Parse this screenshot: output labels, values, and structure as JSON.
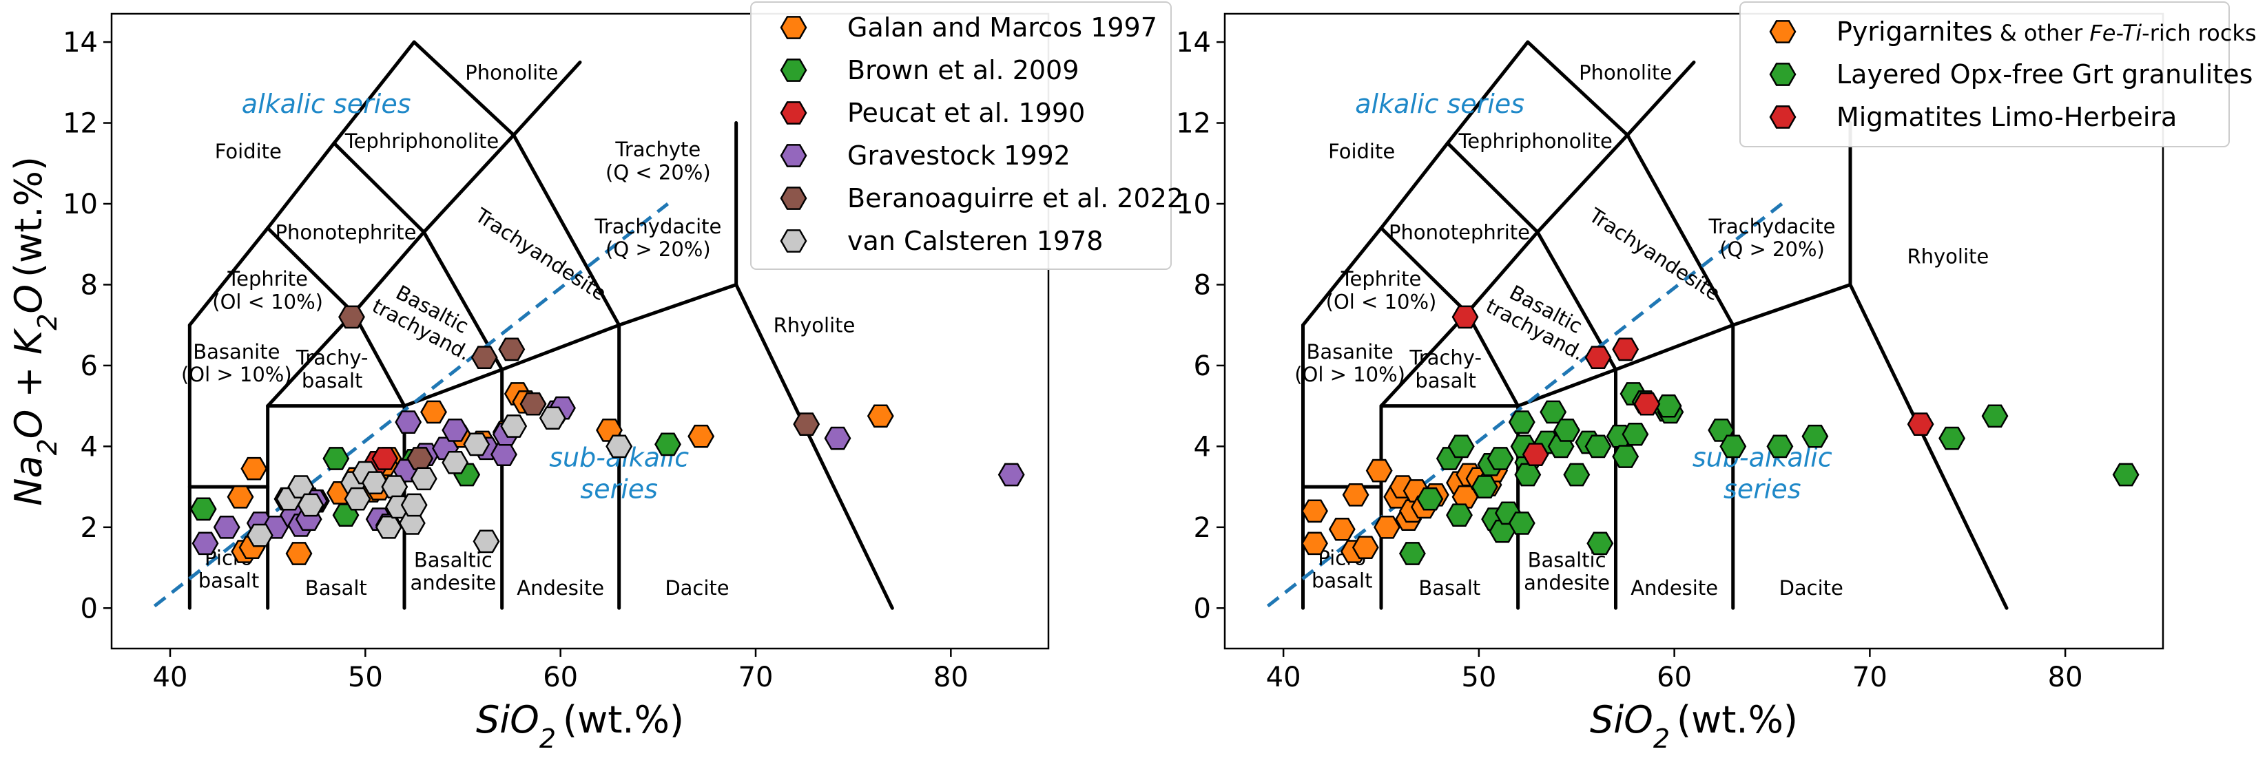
{
  "colors": {
    "orange": "#ff7f0e",
    "green": "#2ca02c",
    "red": "#d62728",
    "purple": "#9467bd",
    "brown": "#8c564b",
    "gray": "#c8c8c8",
    "dashed": "#1f77b4",
    "series_text": "#1e88c8"
  },
  "chart_data": [
    {
      "type": "scatter",
      "title": "",
      "xlabel": "SiO2 (wt.%)",
      "ylabel": "Na2O + K2O (wt.%)",
      "xlim": [
        37,
        85
      ],
      "ylim": [
        -1,
        14.7
      ],
      "xticks": [
        "40",
        "50",
        "60",
        "70",
        "80"
      ],
      "yticks": [
        "0",
        "2",
        "4",
        "6",
        "8",
        "10",
        "12",
        "14"
      ],
      "grid": false,
      "legend_placement": "top-center",
      "fields": [
        "Foidite",
        "Phonolite",
        "Tephriphonolite",
        "Phonotephrite",
        "Tephrite (Ol < 10%)",
        "Basanite (Ol > 10%)",
        "Trachy-basalt",
        "Basaltic trachyand.",
        "Trachyandesite",
        "Trachyte (Q < 20%)",
        "Trachydacite (Q > 20%)",
        "Rhyolite",
        "Picro basalt",
        "Basalt",
        "Basaltic andesite",
        "Andesite",
        "Dacite"
      ],
      "series_labels": [
        "alkalic series",
        "sub-alkalic series"
      ],
      "series": [
        {
          "name": "Galan and Marcos 1997",
          "color": "orange",
          "marker": "hexagon",
          "points": [
            [
              44.3,
              3.45
            ],
            [
              43.6,
              2.75
            ],
            [
              43.8,
              1.4
            ],
            [
              44.2,
              1.5
            ],
            [
              46.6,
              1.35
            ],
            [
              46.0,
              2.7
            ],
            [
              46.6,
              2.9
            ],
            [
              47.1,
              2.7
            ],
            [
              48.7,
              2.85
            ],
            [
              49.5,
              3.2
            ],
            [
              50.3,
              2.9
            ],
            [
              50.8,
              3.2
            ],
            [
              50.7,
              2.95
            ],
            [
              51.2,
              3.7
            ],
            [
              51.0,
              3.55
            ],
            [
              53.5,
              4.85
            ],
            [
              54.8,
              4.25
            ],
            [
              56.0,
              4.1
            ],
            [
              57.2,
              4.35
            ],
            [
              57.8,
              5.3
            ],
            [
              58.2,
              5.1
            ],
            [
              62.5,
              4.4
            ],
            [
              67.2,
              4.25
            ],
            [
              76.4,
              4.75
            ]
          ]
        },
        {
          "name": "Brown et al. 2009",
          "color": "green",
          "marker": "hexagon",
          "points": [
            [
              41.7,
              2.45
            ],
            [
              48.5,
              3.7
            ],
            [
              49.0,
              2.3
            ],
            [
              52.5,
              3.65
            ],
            [
              55.2,
              3.3
            ],
            [
              65.5,
              4.05
            ]
          ]
        },
        {
          "name": "Peucat et al. 1990",
          "color": "red",
          "marker": "hexagon",
          "points": [
            [
              46.4,
              2.7
            ],
            [
              47.5,
              2.65
            ],
            [
              50.6,
              3.6
            ],
            [
              51.0,
              3.7
            ]
          ]
        },
        {
          "name": "Gravestock 1992",
          "color": "purple",
          "marker": "hexagon",
          "points": [
            [
              41.8,
              1.6
            ],
            [
              42.9,
              2.0
            ],
            [
              44.6,
              2.1
            ],
            [
              45.4,
              2.0
            ],
            [
              46.3,
              2.3
            ],
            [
              46.7,
              2.05
            ],
            [
              47.1,
              2.2
            ],
            [
              47.4,
              2.65
            ],
            [
              50.7,
              2.2
            ],
            [
              51.2,
              2.05
            ],
            [
              52.1,
              3.4
            ],
            [
              52.2,
              4.6
            ],
            [
              53.1,
              3.8
            ],
            [
              54.1,
              3.95
            ],
            [
              54.6,
              4.4
            ],
            [
              56.2,
              3.95
            ],
            [
              57.1,
              3.8
            ],
            [
              57.2,
              4.3
            ],
            [
              59.8,
              4.85
            ],
            [
              60.1,
              4.95
            ],
            [
              74.2,
              4.2
            ],
            [
              83.1,
              3.3
            ]
          ]
        },
        {
          "name": "Beranoaguirre et al. 2022",
          "color": "brown",
          "marker": "hexagon",
          "points": [
            [
              49.3,
              7.2
            ],
            [
              56.1,
              6.2
            ],
            [
              57.5,
              6.4
            ],
            [
              52.8,
              3.7
            ],
            [
              58.6,
              5.05
            ],
            [
              72.6,
              4.55
            ]
          ]
        },
        {
          "name": "van Calsteren 1978",
          "color": "gray",
          "marker": "hexagon",
          "points": [
            [
              44.6,
              1.8
            ],
            [
              46.1,
              2.7
            ],
            [
              46.7,
              3.0
            ],
            [
              47.2,
              2.55
            ],
            [
              49.4,
              3.1
            ],
            [
              49.6,
              2.7
            ],
            [
              50.0,
              3.35
            ],
            [
              50.5,
              3.1
            ],
            [
              51.2,
              2.0
            ],
            [
              51.5,
              3.0
            ],
            [
              51.7,
              2.5
            ],
            [
              52.4,
              2.1
            ],
            [
              52.5,
              2.55
            ],
            [
              53.0,
              3.2
            ],
            [
              54.6,
              3.6
            ],
            [
              55.7,
              4.05
            ],
            [
              56.2,
              1.65
            ],
            [
              57.6,
              4.5
            ],
            [
              59.6,
              4.7
            ],
            [
              63.0,
              4.0
            ]
          ]
        }
      ]
    },
    {
      "type": "scatter",
      "title": "",
      "xlabel": "SiO2 (wt.%)",
      "ylabel": "",
      "xlim": [
        37,
        85
      ],
      "ylim": [
        -1,
        14.7
      ],
      "xticks": [
        "40",
        "50",
        "60",
        "70",
        "80"
      ],
      "yticks": [
        "0",
        "2",
        "4",
        "6",
        "8",
        "10",
        "12",
        "14"
      ],
      "grid": false,
      "legend_placement": "top-right",
      "fields": [
        "Foidite",
        "Phonolite",
        "Tephriphonolite",
        "Phonotephrite",
        "Tephrite (Ol < 10%)",
        "Basanite (Ol > 10%)",
        "Trachy-basalt",
        "Basaltic trachyand.",
        "Trachyandesite",
        "Trachydacite (Q > 20%)",
        "Rhyolite",
        "Picro basalt",
        "Basalt",
        "Basaltic andesite",
        "Andesite",
        "Dacite"
      ],
      "series_labels": [
        "alkalic series",
        "sub-alkalic series"
      ],
      "legend_entries": [
        {
          "name": "Pyrigarnites",
          "suffix_prefix": " & other ",
          "suffix_italic": "Fe-Ti",
          "suffix_end": "-rich rocks",
          "color": "orange"
        },
        {
          "name": "Layered Opx-free Grt granulites",
          "color": "green"
        },
        {
          "name": "Migmatites Limo-Herbeira",
          "color": "red"
        }
      ],
      "series": [
        {
          "name": "Pyrigarnites",
          "color": "orange",
          "marker": "hexagon",
          "points": [
            [
              41.6,
              2.4
            ],
            [
              41.6,
              1.6
            ],
            [
              43.0,
              1.95
            ],
            [
              43.6,
              1.4
            ],
            [
              43.7,
              2.8
            ],
            [
              44.2,
              1.5
            ],
            [
              44.9,
              3.4
            ],
            [
              45.3,
              2.0
            ],
            [
              45.8,
              2.75
            ],
            [
              46.1,
              3.0
            ],
            [
              46.4,
              2.2
            ],
            [
              46.6,
              2.4
            ],
            [
              46.8,
              2.9
            ],
            [
              47.2,
              2.5
            ],
            [
              47.8,
              2.8
            ],
            [
              49.0,
              3.1
            ],
            [
              49.3,
              2.75
            ],
            [
              49.5,
              3.3
            ],
            [
              50.0,
              3.2
            ],
            [
              50.5,
              3.05
            ],
            [
              50.8,
              3.4
            ]
          ]
        },
        {
          "name": "Layered Opx-free Grt granulites",
          "color": "green",
          "marker": "hexagon",
          "points": [
            [
              46.6,
              1.35
            ],
            [
              47.5,
              2.7
            ],
            [
              48.5,
              3.7
            ],
            [
              49.0,
              2.3
            ],
            [
              49.1,
              4.0
            ],
            [
              50.3,
              3.0
            ],
            [
              50.6,
              3.55
            ],
            [
              50.8,
              2.2
            ],
            [
              51.1,
              3.7
            ],
            [
              51.2,
              1.9
            ],
            [
              51.5,
              2.35
            ],
            [
              52.2,
              4.6
            ],
            [
              52.5,
              3.6
            ],
            [
              52.5,
              3.3
            ],
            [
              52.3,
              4.0
            ],
            [
              52.2,
              2.1
            ],
            [
              53.5,
              4.1
            ],
            [
              53.8,
              4.85
            ],
            [
              54.2,
              4.0
            ],
            [
              54.5,
              4.4
            ],
            [
              55.0,
              3.3
            ],
            [
              55.6,
              4.1
            ],
            [
              56.1,
              4.0
            ],
            [
              56.2,
              1.6
            ],
            [
              57.2,
              4.25
            ],
            [
              57.5,
              3.75
            ],
            [
              57.9,
              5.3
            ],
            [
              58.0,
              4.3
            ],
            [
              58.5,
              5.1
            ],
            [
              59.6,
              4.9
            ],
            [
              59.8,
              4.85
            ],
            [
              59.7,
              5.0
            ],
            [
              62.4,
              4.4
            ],
            [
              63.0,
              4.0
            ],
            [
              65.4,
              4.0
            ],
            [
              67.2,
              4.25
            ],
            [
              74.2,
              4.2
            ],
            [
              76.4,
              4.75
            ],
            [
              83.1,
              3.3
            ]
          ]
        },
        {
          "name": "Migmatites Limo-Herbeira",
          "color": "red",
          "marker": "hexagon",
          "points": [
            [
              49.3,
              7.2
            ],
            [
              52.9,
              3.8
            ],
            [
              56.1,
              6.2
            ],
            [
              57.5,
              6.4
            ],
            [
              58.6,
              5.05
            ],
            [
              72.6,
              4.55
            ]
          ]
        }
      ]
    }
  ]
}
